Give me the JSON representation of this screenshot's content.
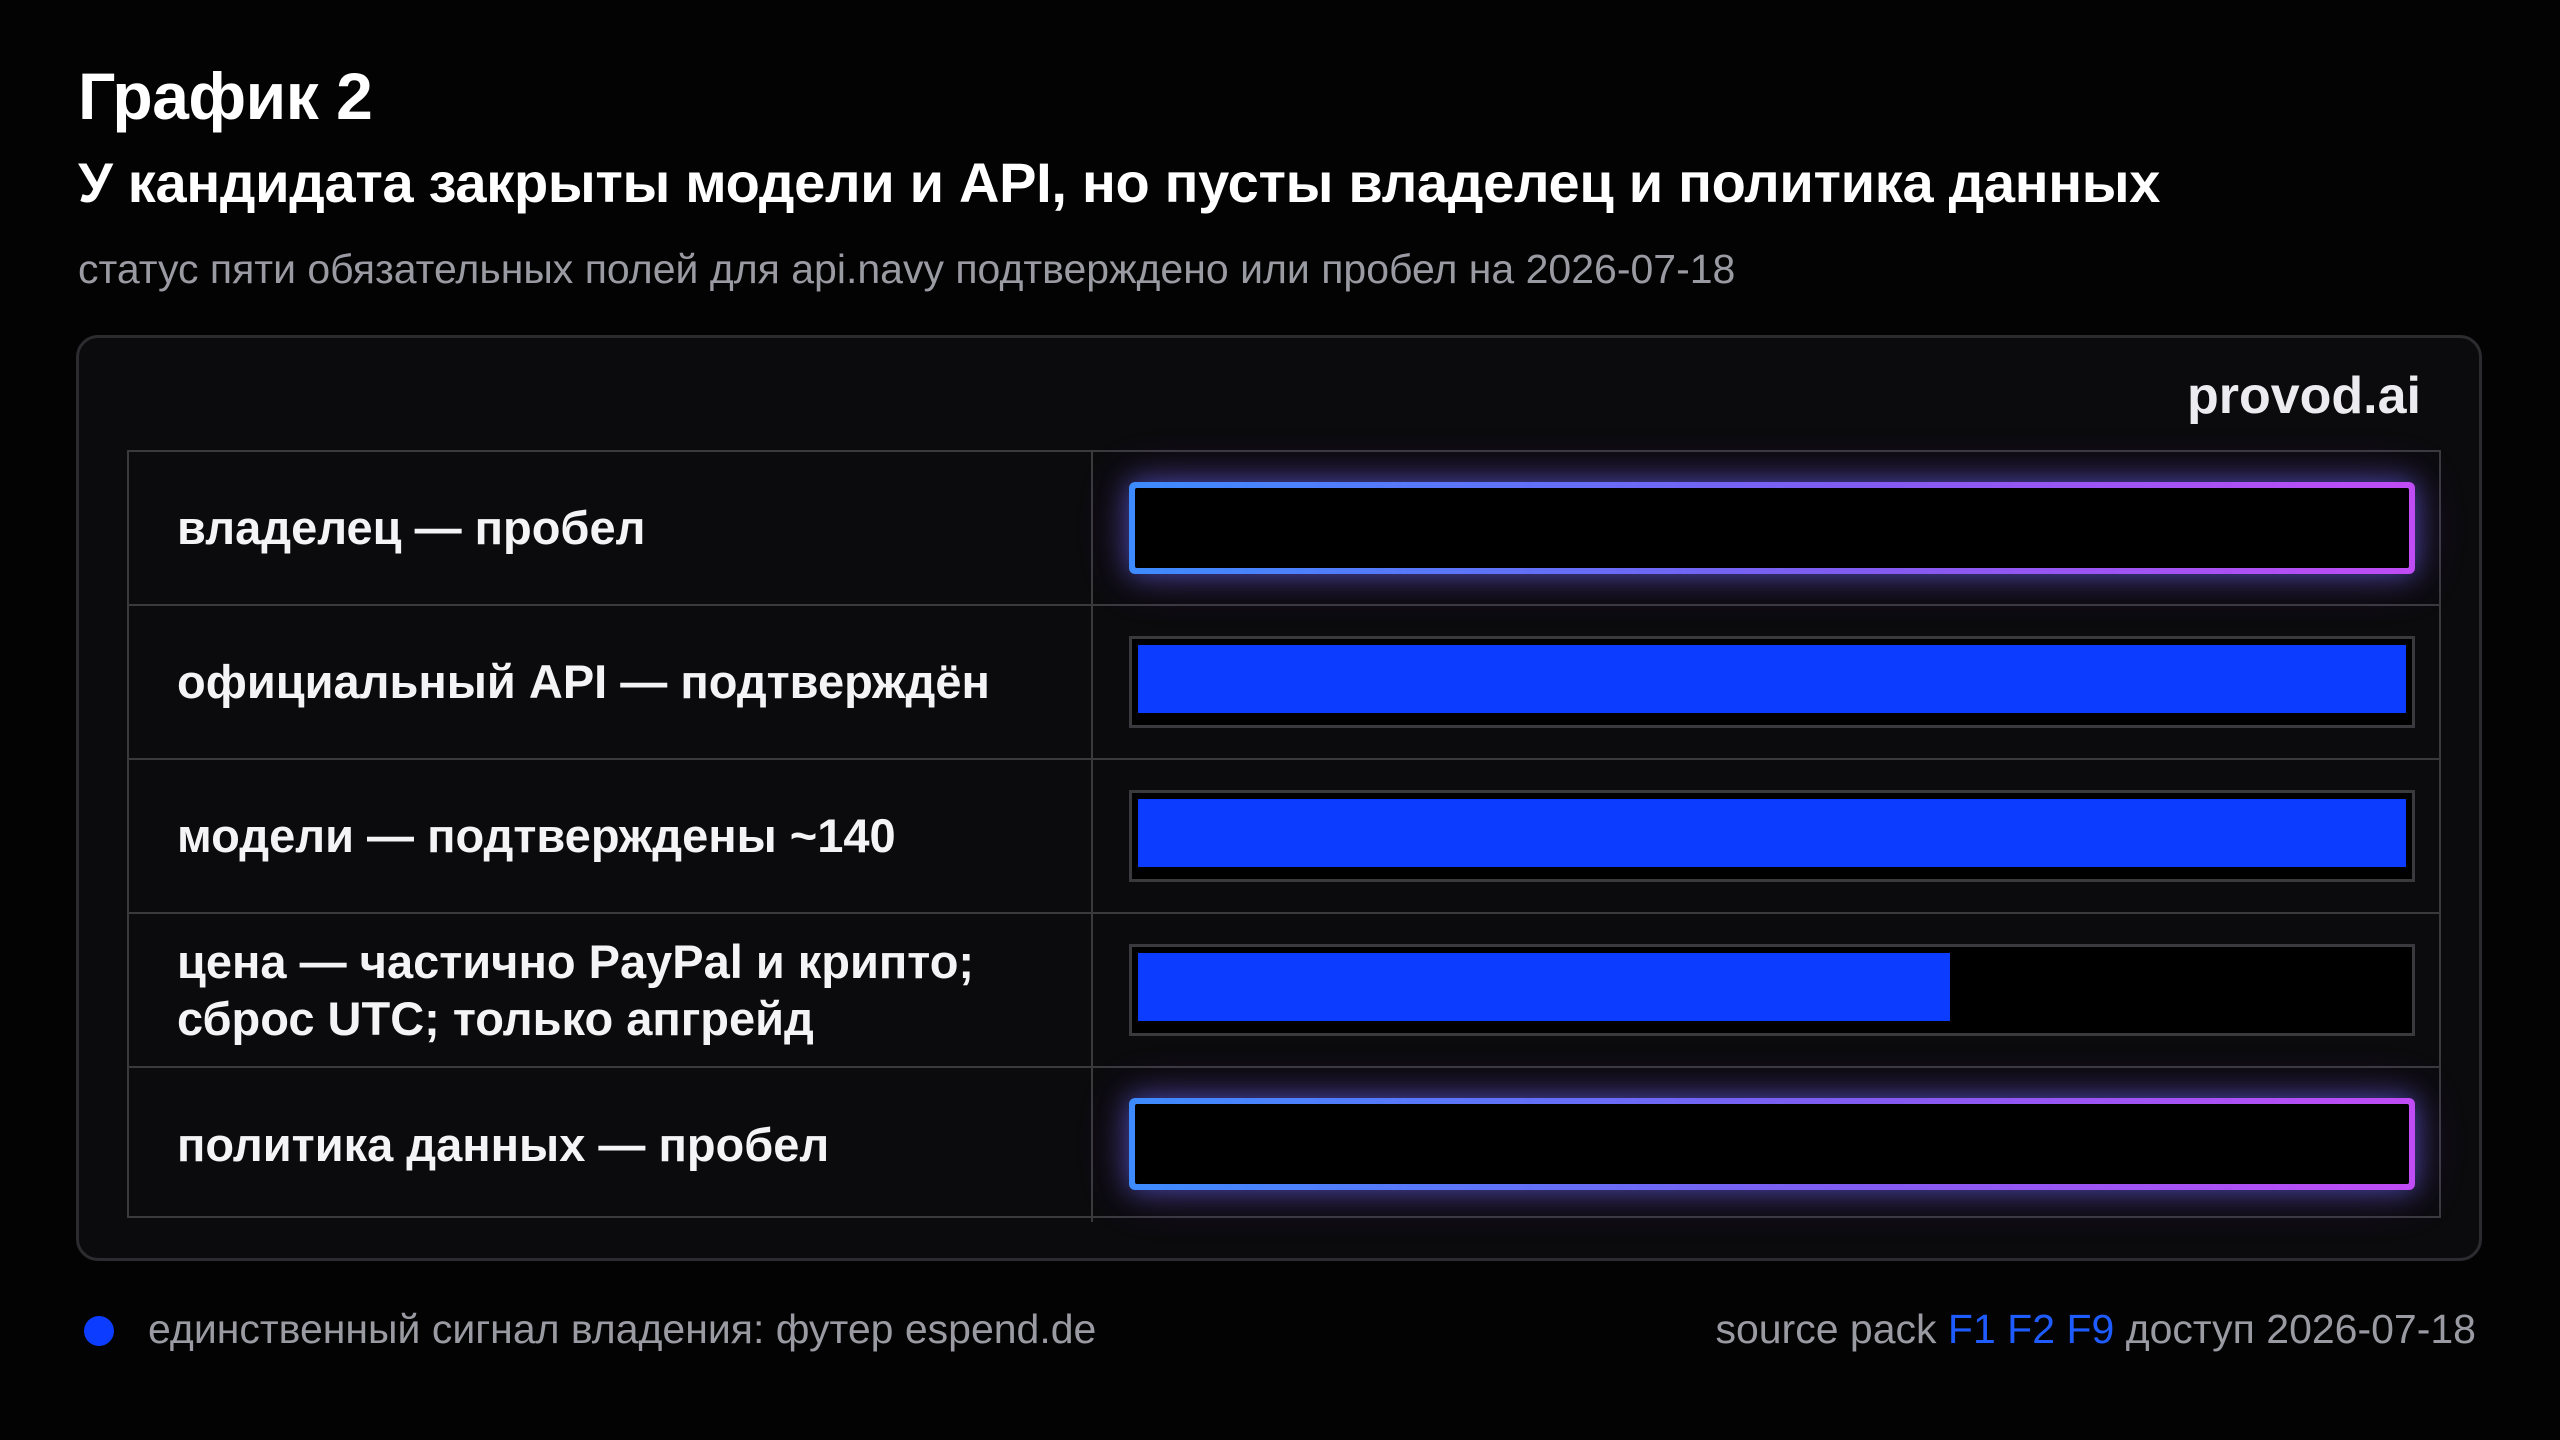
{
  "header": {
    "title": "График 2",
    "subtitle": "У кандидата закрыты модели и API, но пусты владелец и политика данных",
    "caption": "статус пяти обязательных полей для api.navy подтверждено или пробел на 2026-07-18"
  },
  "brand": "provod.ai",
  "colors": {
    "confirmed_fill": "#0b3cff",
    "gap_gradient": [
      "#3d8bff",
      "#7f5cf2",
      "#c04cf5"
    ],
    "background": "#030304"
  },
  "chart_data": {
    "type": "bar",
    "orientation": "horizontal",
    "categories": [
      "владелец — пробел",
      "официальный API — подтверждён",
      "модели — подтверждены ~140",
      "цена — частично PayPal и крипто;\nсброс UTC; только апгрейд",
      "политика данных — пробел"
    ],
    "values": [
      0,
      1,
      1,
      0.64,
      0
    ],
    "status": [
      "gap",
      "confirmed",
      "confirmed",
      "partial",
      "gap"
    ],
    "xlim": [
      0,
      1
    ],
    "grid": false
  },
  "legend": {
    "marker_color": "#0b3cff",
    "text": "единственный сигнал владения: футер espend.de"
  },
  "footer": {
    "source_prefix": "source pack",
    "refs": [
      "F1",
      "F2",
      "F9"
    ],
    "access": "доступ 2026-07-18"
  }
}
